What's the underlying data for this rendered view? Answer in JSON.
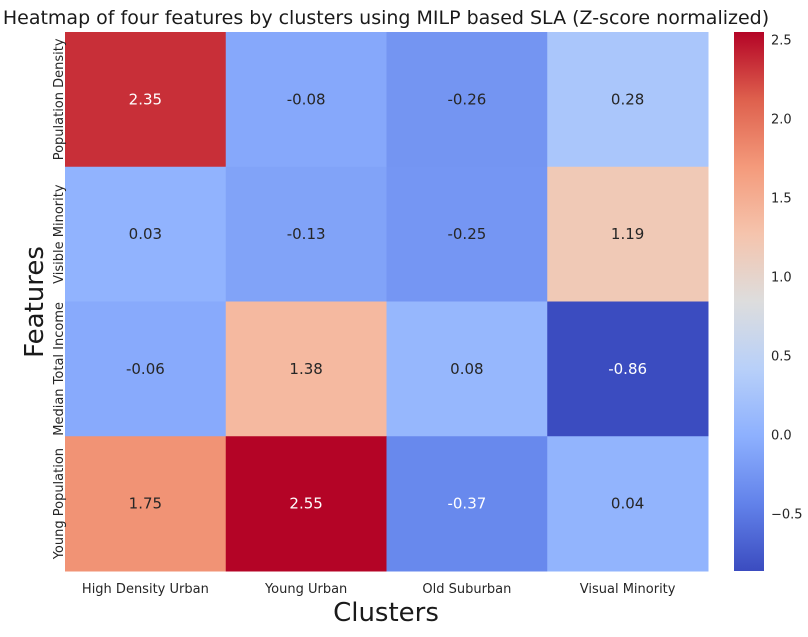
{
  "chart_data": {
    "type": "heatmap",
    "title": "Heatmap of four features by clusters using MILP based SLA (Z-score normalized)",
    "xlabel": "Clusters",
    "ylabel": "Features",
    "x_categories": [
      "High Density Urban",
      "Young Urban",
      "Old Suburban",
      "Visual Minority"
    ],
    "y_categories": [
      "Population Density",
      "Visible Minority",
      "Median Total Income",
      "Young Population"
    ],
    "values": [
      [
        2.35,
        -0.08,
        -0.26,
        0.28
      ],
      [
        0.03,
        -0.13,
        -0.25,
        1.19
      ],
      [
        -0.06,
        1.38,
        0.08,
        -0.86
      ],
      [
        1.75,
        2.55,
        -0.37,
        0.04
      ]
    ],
    "cell_labels": [
      [
        "2.35",
        "-0.08",
        "-0.26",
        "0.28"
      ],
      [
        "0.03",
        "-0.13",
        "-0.25",
        "1.19"
      ],
      [
        "-0.06",
        "1.38",
        "0.08",
        "-0.86"
      ],
      [
        "1.75",
        "2.55",
        "-0.37",
        "0.04"
      ]
    ],
    "colormap": "coolwarm",
    "colorbar": {
      "vmin": -0.86,
      "vmax": 2.55,
      "ticks": [
        -0.5,
        0.0,
        0.5,
        1.0,
        1.5,
        2.0,
        2.5
      ],
      "tick_labels": [
        "−0.5",
        "0.0",
        "0.5",
        "1.0",
        "1.5",
        "2.0",
        "2.5"
      ]
    },
    "grid": false
  }
}
